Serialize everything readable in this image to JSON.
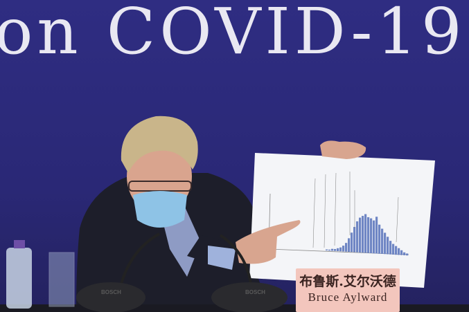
{
  "banner": {
    "text": "on COVID-19"
  },
  "placard": {
    "chinese_name": "布鲁斯.艾尔沃德",
    "english_name": "Bruce Aylward"
  },
  "microphones": [
    {
      "brand": "BOSCH"
    },
    {
      "brand": "BOSCH"
    }
  ],
  "colors": {
    "backdrop": "#2d2b7c",
    "banner_text": "#e9e8f2",
    "placard": "#f3c6bd",
    "chart_bars": "#6f86c4"
  }
}
